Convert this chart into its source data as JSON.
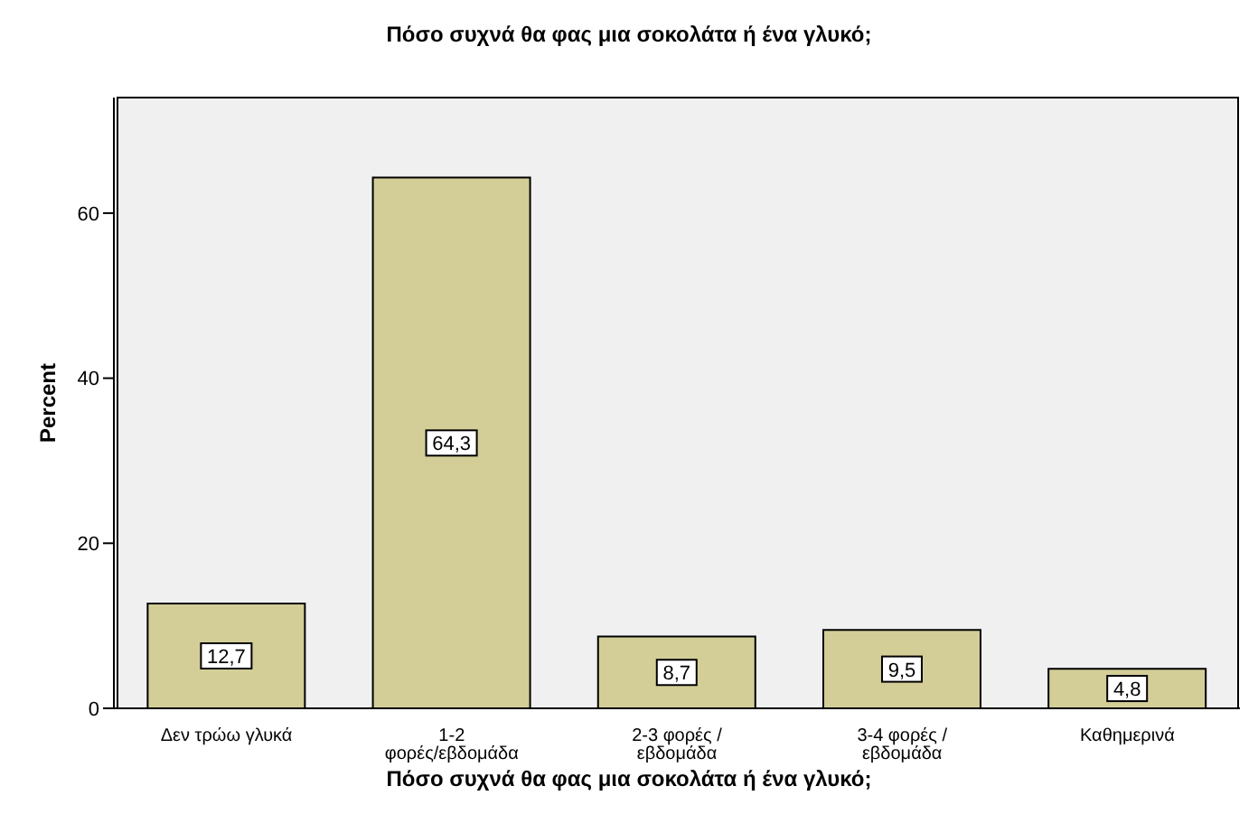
{
  "chart_data": {
    "type": "bar",
    "title": "Πόσο συχνά θα φας μια σοκολάτα ή ένα γλυκό;",
    "xlabel": "Πόσο συχνά θα φας μια σοκολάτα ή ένα γλυκό;",
    "ylabel": "Percent",
    "categories": [
      "Δεν τρώω γλυκά",
      "1-2 φορές/εβδομάδα",
      "2-3 φορές / εβδομάδα",
      "3-4 φορές / εβδομάδα",
      "Καθημερινά"
    ],
    "values": [
      12.7,
      64.3,
      8.7,
      9.5,
      4.8
    ],
    "value_labels": [
      "12,7",
      "64,3",
      "8,7",
      "9,5",
      "4,8"
    ],
    "color": "#d3ce97",
    "ylim": [
      0,
      74
    ],
    "yticks": [
      0,
      20,
      40,
      60
    ],
    "grid": false,
    "legend": false
  }
}
